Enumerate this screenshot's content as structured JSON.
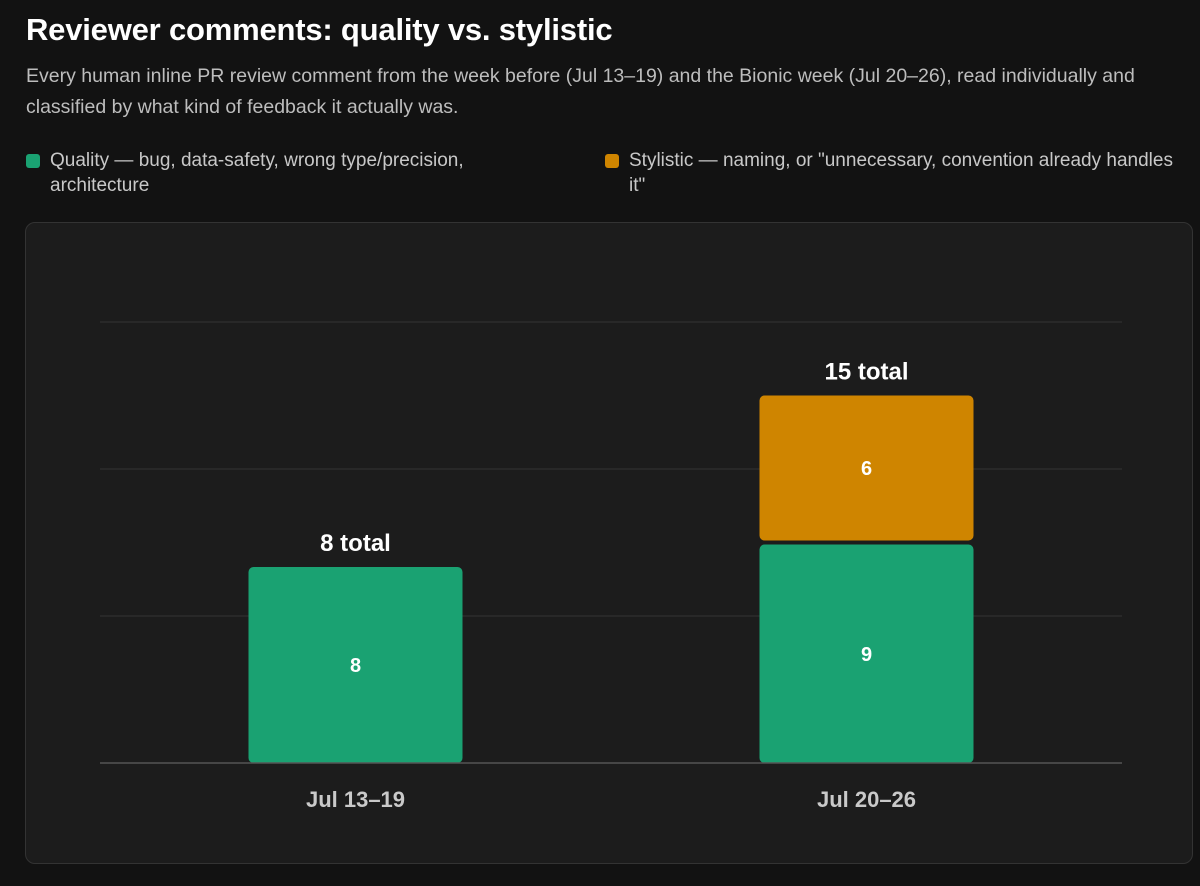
{
  "header": {
    "title": "Reviewer comments: quality vs. stylistic",
    "subtitle": "Every human inline PR review comment from the week before (Jul 13–19) and the Bionic week (Jul 20–26), read individually and classified by what kind of feedback it actually was."
  },
  "legend": [
    {
      "label": "Quality — bug, data-safety, wrong type/precision, architecture",
      "color": "#1aa272"
    },
    {
      "label": "Stylistic — naming, or \"unnecessary, convention already handles it\"",
      "color": "#cf8500"
    }
  ],
  "chart_data": {
    "type": "bar",
    "stacked": true,
    "categories": [
      "Jul 13–19",
      "Jul 20–26"
    ],
    "series": [
      {
        "name": "Quality",
        "values": [
          8,
          9
        ],
        "color": "#1aa272"
      },
      {
        "name": "Stylistic",
        "values": [
          0,
          6
        ],
        "color": "#cf8500"
      }
    ],
    "totals": [
      "8 total",
      "15 total"
    ],
    "ylim": [
      0,
      18
    ],
    "grid": true,
    "legend_position": "top",
    "xlabel": "",
    "ylabel": ""
  }
}
